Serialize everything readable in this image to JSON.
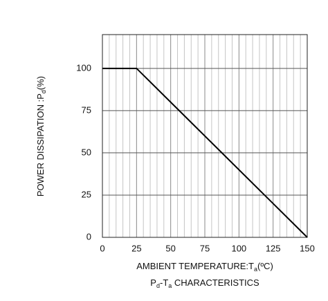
{
  "chart_data": {
    "type": "line",
    "ylabel": [
      "POWER DISSIPATION :P",
      "d",
      "(%)"
    ],
    "xlabel": [
      "AMBIENT TEMPERATURE:T",
      "a",
      "(ºC)"
    ],
    "title": [
      "P",
      "d",
      "-T",
      "a",
      " CHARACTERISTICS"
    ],
    "x": [
      0,
      25,
      150
    ],
    "values": [
      100,
      100,
      0
    ],
    "color": "#000000",
    "xlim": [
      0,
      150
    ],
    "xticks": [
      0,
      25,
      50,
      75,
      100,
      125,
      150
    ],
    "xminorticks": [
      5,
      10,
      15,
      20,
      30,
      35,
      40,
      45,
      55,
      60,
      65,
      70,
      80,
      85,
      90,
      95,
      105,
      110,
      115,
      120,
      130,
      135,
      140,
      145
    ],
    "ylim": [
      0,
      120
    ],
    "yticks": [
      0,
      25,
      50,
      75,
      100
    ],
    "grid": true
  }
}
